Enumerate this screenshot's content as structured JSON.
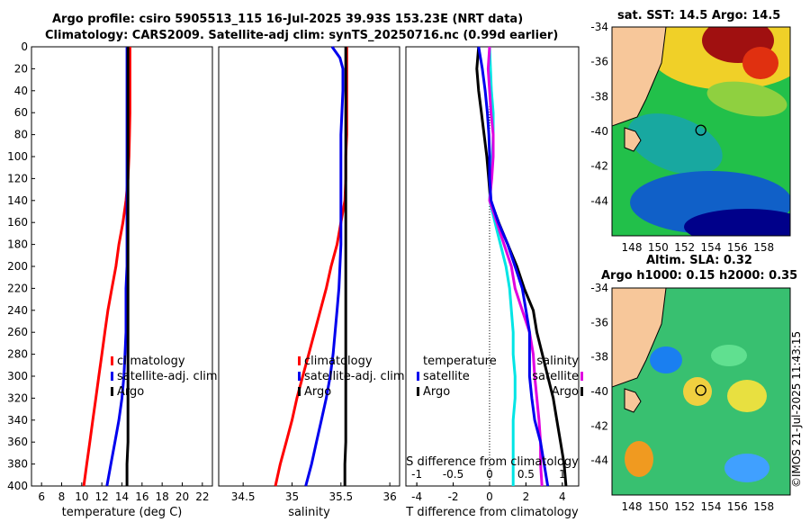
{
  "header": {
    "title_line1": "Argo profile: csiro 5905513_115 16-Jul-2025 39.93S 153.23E (NRT data)",
    "title_line2": "Climatology: CARS2009. Satellite-adj clim: synTS_20250716.nc (0.99d earlier)"
  },
  "map_sst": {
    "title": "sat. SST: 14.5 Argo: 14.5"
  },
  "map_sla": {
    "title_line1": "Altim. SLA: 0.32",
    "title_line2": "Argo h1000: 0.15 h2000: 0.35"
  },
  "watermark": "©IMOS 21-Jul-2025 11:43:15",
  "colors": {
    "clim": "#ff0000",
    "sat": "#0000ee",
    "argo": "#000000",
    "t_sat": "#00e5e5",
    "s_sat": "#e000e0"
  },
  "chart_data": [
    {
      "type": "line",
      "name": "temperature",
      "xlabel": "temperature (deg C)",
      "ylim": [
        400,
        0
      ],
      "xlim": [
        5,
        23
      ],
      "xticks": [
        6,
        8,
        10,
        12,
        14,
        16,
        18,
        20,
        22
      ],
      "yticks": [
        0,
        20,
        40,
        60,
        80,
        100,
        120,
        140,
        160,
        180,
        200,
        220,
        240,
        260,
        280,
        300,
        320,
        340,
        360,
        380,
        400
      ],
      "legend": [
        "climatology",
        "satellite-adj. clim",
        "Argo"
      ],
      "depth": [
        0,
        20,
        40,
        60,
        80,
        100,
        120,
        140,
        160,
        180,
        200,
        220,
        240,
        260,
        280,
        300,
        320,
        340,
        360,
        380,
        400
      ],
      "series": [
        {
          "name": "climatology",
          "color": "#ff0000",
          "values": [
            14.8,
            14.8,
            14.8,
            14.8,
            14.75,
            14.7,
            14.6,
            14.4,
            14.1,
            13.7,
            13.4,
            13.0,
            12.6,
            12.3,
            12.0,
            11.7,
            11.4,
            11.1,
            10.8,
            10.5,
            10.2
          ]
        },
        {
          "name": "satellite-adj. clim",
          "color": "#0000ee",
          "values": [
            14.5,
            14.5,
            14.5,
            14.5,
            14.5,
            14.5,
            14.5,
            14.5,
            14.5,
            14.5,
            14.5,
            14.4,
            14.4,
            14.4,
            14.3,
            14.2,
            14.0,
            13.7,
            13.3,
            12.9,
            12.5
          ]
        },
        {
          "name": "Argo",
          "color": "#000000",
          "values": [
            14.6,
            14.6,
            14.6,
            14.6,
            14.6,
            14.6,
            14.6,
            14.6,
            14.6,
            14.6,
            14.6,
            14.6,
            14.6,
            14.6,
            14.6,
            14.6,
            14.6,
            14.6,
            14.6,
            14.5,
            14.5
          ]
        }
      ]
    },
    {
      "type": "line",
      "name": "salinity",
      "xlabel": "salinity",
      "ylim": [
        400,
        0
      ],
      "xlim": [
        34.25,
        36.1
      ],
      "xticks": [
        34.5,
        35,
        35.5,
        36
      ],
      "legend": [
        "climatology",
        "satellite-adj. clim",
        "Argo"
      ],
      "depth": [
        0,
        10,
        20,
        40,
        60,
        80,
        100,
        120,
        140,
        160,
        180,
        200,
        220,
        240,
        260,
        280,
        300,
        320,
        340,
        360,
        380,
        400
      ],
      "series": [
        {
          "name": "climatology",
          "color": "#ff0000",
          "values": [
            35.56,
            35.56,
            35.56,
            35.56,
            35.56,
            35.56,
            35.55,
            35.55,
            35.54,
            35.5,
            35.46,
            35.4,
            35.35,
            35.29,
            35.23,
            35.17,
            35.11,
            35.05,
            35.0,
            34.94,
            34.88,
            34.83
          ]
        },
        {
          "name": "satellite-adj. clim",
          "color": "#0000ee",
          "values": [
            35.41,
            35.49,
            35.52,
            35.52,
            35.51,
            35.5,
            35.5,
            35.5,
            35.5,
            35.5,
            35.5,
            35.49,
            35.48,
            35.46,
            35.44,
            35.42,
            35.39,
            35.35,
            35.3,
            35.25,
            35.2,
            35.14
          ]
        },
        {
          "name": "Argo",
          "color": "#000000",
          "values": [
            35.55,
            35.55,
            35.55,
            35.55,
            35.55,
            35.55,
            35.55,
            35.55,
            35.55,
            35.55,
            35.55,
            35.55,
            35.55,
            35.55,
            35.55,
            35.55,
            35.55,
            35.55,
            35.55,
            35.55,
            35.54,
            35.54
          ]
        }
      ]
    },
    {
      "type": "line",
      "name": "difference",
      "xlabel": "T difference from climatology",
      "xlabel_top": "S difference from climatology",
      "ylim": [
        400,
        0
      ],
      "xlim": [
        -4.6,
        4.9
      ],
      "xlim_top": [
        -1.15,
        1.225
      ],
      "xticks": [
        -4,
        -2,
        0,
        2,
        4
      ],
      "xticks_top": [
        -1,
        -0.5,
        0,
        0.5,
        1
      ],
      "legend_left": [
        "temperature",
        "satellite",
        "Argo"
      ],
      "legend_right": [
        "salinity",
        "satellite",
        "Argo"
      ],
      "depth": [
        0,
        20,
        40,
        60,
        80,
        100,
        120,
        140,
        160,
        180,
        200,
        220,
        240,
        260,
        280,
        300,
        320,
        340,
        360,
        380,
        400
      ],
      "series": [
        {
          "name": "T satellite",
          "axis": "T",
          "color": "#00e5e5",
          "values": [
            0.0,
            0.05,
            0.1,
            0.2,
            0.2,
            0.15,
            0.05,
            0.0,
            0.3,
            0.6,
            0.9,
            1.1,
            1.2,
            1.3,
            1.3,
            1.4,
            1.4,
            1.3,
            1.3,
            1.3,
            1.3
          ]
        },
        {
          "name": "T Argo",
          "axis": "T",
          "color": "#000000",
          "values": [
            -0.6,
            -0.7,
            -0.6,
            -0.45,
            -0.3,
            -0.15,
            -0.05,
            0.05,
            0.5,
            1.0,
            1.5,
            1.9,
            2.4,
            2.6,
            2.9,
            3.2,
            3.5,
            3.7,
            3.9,
            4.1,
            4.2
          ]
        },
        {
          "name": "S satellite",
          "axis": "S",
          "color": "#e000e0",
          "values": [
            0.0,
            -0.02,
            0.0,
            0.02,
            0.05,
            0.05,
            0.03,
            0.0,
            0.1,
            0.2,
            0.3,
            0.35,
            0.45,
            0.55,
            0.6,
            0.62,
            0.65,
            0.68,
            0.7,
            0.7,
            0.72
          ]
        },
        {
          "name": "S Argo",
          "axis": "S",
          "color": "#0000ee",
          "values": [
            -0.15,
            -0.1,
            -0.06,
            -0.03,
            -0.01,
            0.0,
            0.0,
            0.02,
            0.12,
            0.25,
            0.35,
            0.45,
            0.5,
            0.55,
            0.55,
            0.55,
            0.58,
            0.62,
            0.7,
            0.75,
            0.8
          ]
        }
      ]
    },
    {
      "type": "heatmap",
      "name": "sat-sst-map",
      "xticks": [
        148,
        150,
        152,
        154,
        156,
        158
      ],
      "yticks": [
        -34,
        -36,
        -38,
        -40,
        -42,
        -44
      ],
      "xlim": [
        146.5,
        160
      ],
      "ylim": [
        -46,
        -34
      ],
      "marker": {
        "lon": 153.23,
        "lat": -39.93
      }
    },
    {
      "type": "heatmap",
      "name": "altimetry-sla-map",
      "xticks": [
        148,
        150,
        152,
        154,
        156,
        158
      ],
      "yticks": [
        -34,
        -36,
        -38,
        -40,
        -42,
        -44
      ],
      "xlim": [
        146.5,
        160
      ],
      "ylim": [
        -46,
        -34
      ],
      "marker": {
        "lon": 153.23,
        "lat": -39.93
      }
    }
  ]
}
